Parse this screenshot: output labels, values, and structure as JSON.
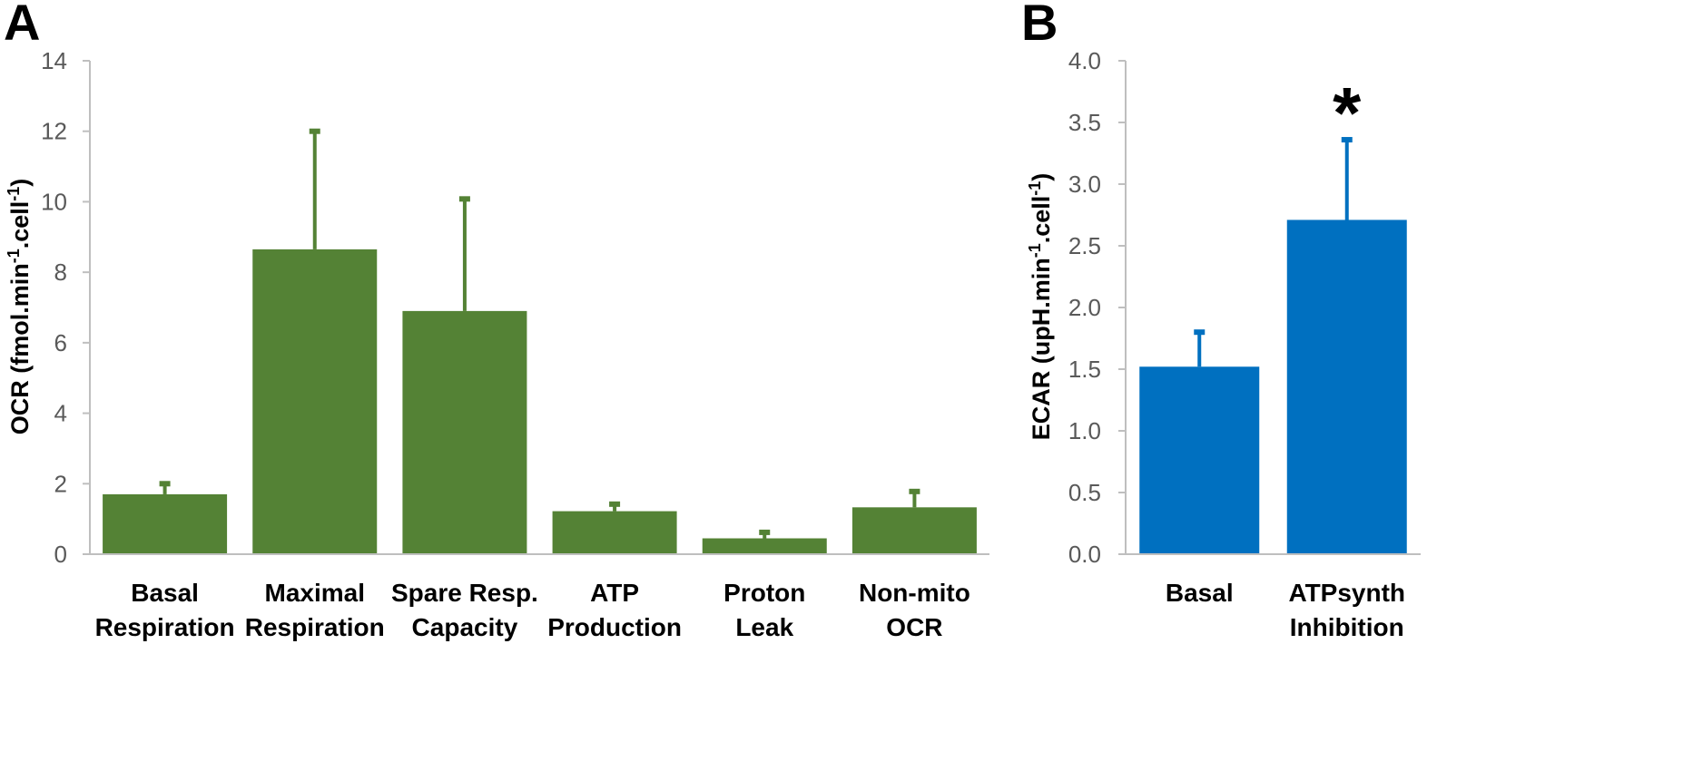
{
  "chart_data": [
    {
      "panel": "A",
      "type": "bar",
      "ylabel": "OCR (fmol.min",
      "ylabel_sup1": "-1",
      "ylabel_mid": ".cell",
      "ylabel_sup2": "-1",
      "ylabel_end": ")",
      "ylim": [
        0,
        14
      ],
      "yticks": [
        "0",
        "2",
        "4",
        "6",
        "8",
        "10",
        "12",
        "14"
      ],
      "yticks_values": [
        0,
        2,
        4,
        6,
        8,
        10,
        12,
        14
      ],
      "grid": false,
      "color": "#548235",
      "categories": [
        [
          "Basal",
          "Respiration"
        ],
        [
          "Maximal",
          "Respiration"
        ],
        [
          "Spare Resp.",
          "Capacity"
        ],
        [
          "ATP",
          "Production"
        ],
        [
          "Proton",
          "Leak"
        ],
        [
          "Non-mito",
          "OCR"
        ]
      ],
      "values": [
        1.7,
        8.65,
        6.9,
        1.22,
        0.45,
        1.33
      ],
      "errors": [
        0.3,
        3.35,
        3.18,
        0.2,
        0.17,
        0.45
      ]
    },
    {
      "panel": "B",
      "type": "bar",
      "ylabel": "ECAR (upH.min",
      "ylabel_sup1": "-1",
      "ylabel_mid": ".cell",
      "ylabel_sup2": "-1",
      "ylabel_end": ")",
      "ylim": [
        0,
        4
      ],
      "yticks": [
        "0.0",
        "0.5",
        "1.0",
        "1.5",
        "2.0",
        "2.5",
        "3.0",
        "3.5",
        "4.0"
      ],
      "yticks_values": [
        0,
        0.5,
        1,
        1.5,
        2,
        2.5,
        3,
        3.5,
        4
      ],
      "grid": false,
      "color": "#0070C0",
      "categories": [
        [
          "Basal"
        ],
        [
          "ATPsynth",
          "Inhibition"
        ]
      ],
      "values": [
        1.52,
        2.71
      ],
      "errors": [
        0.28,
        0.65
      ],
      "annotations": [
        {
          "category_index": 1,
          "text": "*"
        }
      ]
    }
  ]
}
